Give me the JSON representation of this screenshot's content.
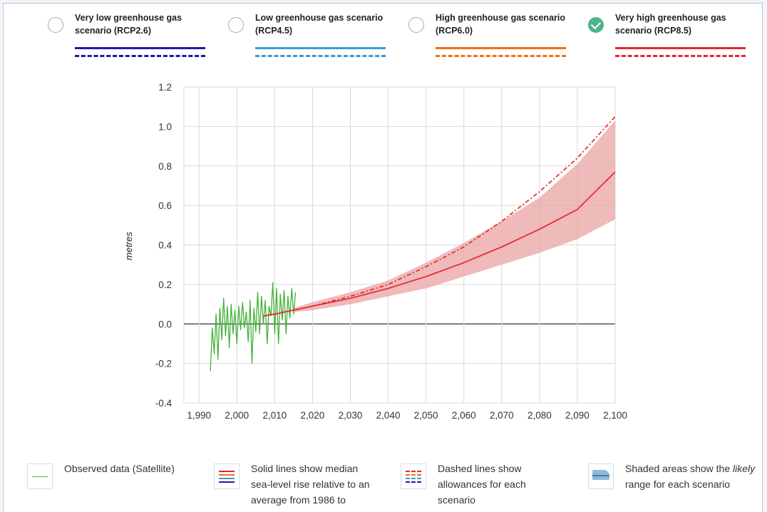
{
  "scenarios": [
    {
      "title": "Very low greenhouse gas scenario (RCP2.6)",
      "color": "#1a1aa6",
      "checked": false
    },
    {
      "title": "Low greenhouse gas scenario (RCP4.5)",
      "color": "#3a9ad9",
      "checked": false
    },
    {
      "title": "High greenhouse gas scenario (RCP6.0)",
      "color": "#f07019",
      "checked": false
    },
    {
      "title": "Very high greenhouse gas scenario (RCP8.5)",
      "color": "#e8262b",
      "checked": true
    }
  ],
  "legend": {
    "observed": "Observed data (Satellite)",
    "solid": "Solid lines show median sea-level rise relative to an average from 1986 to",
    "dashed": "Dashed lines show allowances for each scenario",
    "shaded_pre": "Shaded areas show the ",
    "shaded_em": "likely",
    "shaded_post": " range for each scenario"
  },
  "chart_data": {
    "type": "line",
    "title": "",
    "xlabel": "",
    "ylabel": "metres",
    "xlim": [
      1986,
      2100
    ],
    "ylim": [
      -0.4,
      1.2
    ],
    "x_ticks": [
      1990,
      2000,
      2010,
      2020,
      2030,
      2040,
      2050,
      2060,
      2070,
      2080,
      2090,
      2100
    ],
    "x_tick_labels": [
      "1,990",
      "2,000",
      "2,010",
      "2,020",
      "2,030",
      "2,040",
      "2,050",
      "2,060",
      "2,070",
      "2,080",
      "2,090",
      "2,100"
    ],
    "y_ticks": [
      -0.4,
      -0.2,
      0.0,
      0.2,
      0.4,
      0.6,
      0.8,
      1.0,
      1.2
    ],
    "y_tick_labels": [
      "-0.4",
      "-0.2",
      "0.0",
      "0.2",
      "0.4",
      "0.6",
      "0.8",
      "1.0",
      "1.2"
    ],
    "grid": true,
    "series": [
      {
        "kind": "observed",
        "color": "#44b23b",
        "x": [
          1993,
          1993.5,
          1994,
          1994.5,
          1995,
          1995.5,
          1996,
          1996.5,
          1997,
          1997.5,
          1998,
          1998.5,
          1999,
          1999.5,
          2000,
          2000.5,
          2001,
          2001.5,
          2002,
          2002.5,
          2003,
          2003.5,
          2004,
          2004.5,
          2005,
          2005.5,
          2006,
          2006.5,
          2007,
          2007.5,
          2008,
          2008.5,
          2009,
          2009.5,
          2010,
          2010.5,
          2011,
          2011.5,
          2012,
          2012.5,
          2013,
          2013.5,
          2014,
          2014.5,
          2015,
          2015.5
        ],
        "y": [
          -0.24,
          -0.02,
          -0.15,
          0.05,
          -0.18,
          0.08,
          -0.08,
          0.13,
          -0.06,
          0.09,
          -0.12,
          0.1,
          -0.05,
          0.07,
          -0.1,
          0.09,
          -0.03,
          0.11,
          -0.02,
          0.06,
          -0.09,
          0.12,
          -0.2,
          0.08,
          -0.04,
          0.16,
          -0.05,
          0.14,
          0.0,
          0.12,
          -0.1,
          0.09,
          0.04,
          0.21,
          -0.05,
          0.18,
          -0.1,
          0.15,
          0.02,
          0.17,
          -0.05,
          0.14,
          0.03,
          0.18,
          0.05,
          0.16
        ]
      },
      {
        "kind": "median",
        "name": "RCP8.5",
        "color": "#e8262b",
        "x": [
          2007,
          2010,
          2015,
          2020,
          2030,
          2040,
          2050,
          2060,
          2070,
          2080,
          2090,
          2100
        ],
        "y": [
          0.04,
          0.05,
          0.07,
          0.09,
          0.13,
          0.18,
          0.24,
          0.31,
          0.39,
          0.48,
          0.58,
          0.77
        ]
      },
      {
        "kind": "allowance",
        "name": "RCP8.5",
        "color": "#e8262b",
        "x": [
          2007,
          2010,
          2015,
          2020,
          2030,
          2040,
          2050,
          2060,
          2070,
          2080,
          2090,
          2100
        ],
        "y": [
          0.04,
          0.05,
          0.07,
          0.09,
          0.14,
          0.2,
          0.29,
          0.39,
          0.52,
          0.67,
          0.84,
          1.05
        ]
      }
    ],
    "range": {
      "name": "RCP8.5",
      "color": "#e8262b",
      "x": [
        2015,
        2020,
        2030,
        2040,
        2050,
        2060,
        2070,
        2080,
        2090,
        2100
      ],
      "lower": [
        0.06,
        0.07,
        0.1,
        0.14,
        0.18,
        0.24,
        0.3,
        0.36,
        0.43,
        0.53
      ],
      "upper": [
        0.08,
        0.11,
        0.16,
        0.22,
        0.31,
        0.41,
        0.52,
        0.64,
        0.81,
        1.03
      ]
    }
  }
}
